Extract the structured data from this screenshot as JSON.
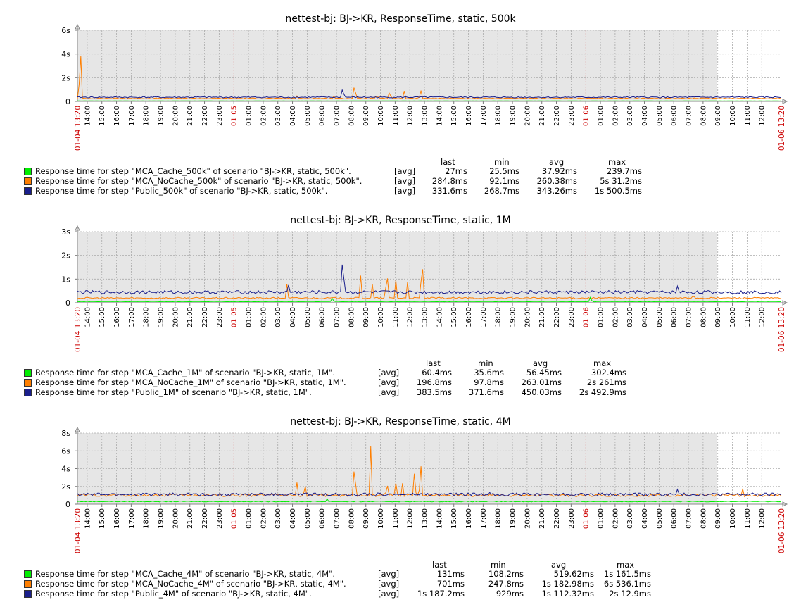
{
  "tick_labels": [
    "14:00",
    "15:00",
    "16:00",
    "17:00",
    "18:00",
    "19:00",
    "20:00",
    "21:00",
    "22:00",
    "23:00",
    "01-05",
    "01:00",
    "02:00",
    "03:00",
    "04:00",
    "05:00",
    "06:00",
    "07:00",
    "08:00",
    "09:00",
    "10:00",
    "11:00",
    "12:00",
    "13:00",
    "14:00",
    "15:00",
    "16:00",
    "17:00",
    "18:00",
    "19:00",
    "20:00",
    "21:00",
    "22:00",
    "23:00",
    "01-06",
    "01:00",
    "02:00",
    "03:00",
    "04:00",
    "05:00",
    "06:00",
    "07:00",
    "08:00",
    "09:00",
    "10:00",
    "11:00",
    "12:00"
  ],
  "x_start_label": "01-04 13:20",
  "x_end_label": "01-06 13:20",
  "stat_headers": {
    "last": "last",
    "min": "min",
    "avg": "avg",
    "max": "max"
  },
  "colors": {
    "MCA_Cache": "#00ee00",
    "MCA_NoCache": "#ff7f00",
    "Public": "#1a1f8c",
    "grid_bg": "#e6e6e6",
    "date_label": "#cc0000"
  },
  "chart_data": [
    {
      "type": "line",
      "title": "nettest-bj: BJ->KR, ResponseTime, static, 500k",
      "yticks": [
        "0",
        "2s",
        "4s",
        "6s"
      ],
      "ylim": [
        0,
        6
      ],
      "x_range": [
        "01-04 13:20",
        "01-06 13:20"
      ],
      "series": [
        {
          "name": "Response time for step \"MCA_Cache_500k\" of scenario \"BJ->KR, static, 500k\".",
          "agg": "[avg]",
          "last": "27ms",
          "min": "25.5ms",
          "avg": "37.92ms",
          "max": "239.7ms",
          "level": 0.04,
          "spikes": []
        },
        {
          "name": "Response time for step \"MCA_NoCache_500k\" of scenario \"BJ->KR, static, 500k\".",
          "agg": "[avg]",
          "last": "284.8ms",
          "min": "92.1ms",
          "avg": "260.38ms",
          "max": "5s 31.2ms",
          "level": 0.25,
          "spikes": [
            [
              0.2,
              5.0
            ],
            [
              18.9,
              1.8
            ],
            [
              21.3,
              1.1
            ],
            [
              22.3,
              1.0
            ],
            [
              23.4,
              1.2
            ],
            [
              20.4,
              0.8
            ],
            [
              15.0,
              0.6
            ],
            [
              17.5,
              0.5
            ]
          ]
        },
        {
          "name": "Response time for step \"Public_500k\" of scenario \"BJ->KR, static, 500k\".",
          "agg": "[avg]",
          "last": "331.6ms",
          "min": "268.7ms",
          "avg": "343.26ms",
          "max": "1s 500.5ms",
          "level": 0.35,
          "spikes": [
            [
              18.1,
              1.5
            ]
          ]
        }
      ]
    },
    {
      "type": "line",
      "title": "nettest-bj: BJ->KR, ResponseTime, static, 1M",
      "yticks": [
        "0",
        "1s",
        "2s",
        "3s"
      ],
      "ylim": [
        0,
        3
      ],
      "x_range": [
        "01-04 13:20",
        "01-06 13:20"
      ],
      "series": [
        {
          "name": "Response time for step \"MCA_Cache_1M\" of scenario \"BJ->KR, static, 1M\".",
          "agg": "[avg]",
          "last": "60.4ms",
          "min": "35.6ms",
          "avg": "56.45ms",
          "max": "302.4ms",
          "level": 0.05,
          "spikes": [
            [
              17.4,
              0.25
            ],
            [
              35.0,
              0.3
            ],
            [
              60.0,
              0.25
            ]
          ]
        },
        {
          "name": "Response time for step \"MCA_NoCache_1M\" of scenario \"BJ->KR, static, 1M\".",
          "agg": "[avg]",
          "last": "196.8ms",
          "min": "97.8ms",
          "avg": "263.01ms",
          "max": "2s 261ms",
          "level": 0.2,
          "spikes": [
            [
              23.5,
              2.2
            ],
            [
              21.1,
              1.6
            ],
            [
              19.3,
              1.3
            ],
            [
              22.5,
              1.0
            ],
            [
              14.3,
              0.9
            ],
            [
              20.1,
              0.9
            ],
            [
              21.7,
              1.1
            ],
            [
              42.0,
              0.5
            ],
            [
              58.0,
              0.5
            ]
          ]
        },
        {
          "name": "Response time for step \"Public_1M\" of scenario \"BJ->KR, static, 1M\".",
          "agg": "[avg]",
          "last": "383.5ms",
          "min": "371.6ms",
          "avg": "450.03ms",
          "max": "2s 492.9ms",
          "level": 0.45,
          "spikes": [
            [
              18.1,
              2.5
            ],
            [
              14.4,
              0.75
            ],
            [
              40.9,
              0.8
            ]
          ]
        }
      ]
    },
    {
      "type": "line",
      "title": "nettest-bj: BJ->KR, ResponseTime, static, 4M",
      "yticks": [
        "0",
        "2s",
        "4s",
        "6s",
        "8s"
      ],
      "ylim": [
        0,
        8
      ],
      "x_range": [
        "01-04 13:20",
        "01-06 13:20"
      ],
      "series": [
        {
          "name": "Response time for step \"MCA_Cache_4M\" of scenario \"BJ->KR, static, 4M\".",
          "agg": "[avg]",
          "last": "131ms",
          "min": "108.2ms",
          "avg": "519.62ms",
          "max": "1s 161.5ms",
          "level": 0.3,
          "spikes": [
            [
              17.0,
              0.8
            ]
          ]
        },
        {
          "name": "Response time for step \"MCA_NoCache_4M\" of scenario \"BJ->KR, static, 4M\".",
          "agg": "[avg]",
          "last": "701ms",
          "min": "247.8ms",
          "avg": "1s 182.98ms",
          "max": "6s 536.1ms",
          "level": 1.0,
          "spikes": [
            [
              20.0,
              6.5
            ],
            [
              18.9,
              5.7
            ],
            [
              23.4,
              5.6
            ],
            [
              23.0,
              4.5
            ],
            [
              22.2,
              3.1
            ],
            [
              21.1,
              3.2
            ],
            [
              21.7,
              2.7
            ],
            [
              15.0,
              3.2
            ],
            [
              15.5,
              3.1
            ],
            [
              42.0,
              2.2
            ],
            [
              45.4,
              2.3
            ],
            [
              51.9,
              2.1
            ],
            [
              12.4,
              2.0
            ]
          ]
        },
        {
          "name": "Response time for step \"Public_4M\" of scenario \"BJ->KR, static, 4M\".",
          "agg": "[avg]",
          "last": "1s 187.2ms",
          "min": "929ms",
          "avg": "1s 112.32ms",
          "max": "2s 12.9ms",
          "level": 1.1,
          "spikes": [
            [
              40.9,
              1.9
            ],
            [
              28.1,
              1.5
            ],
            [
              30.5,
              1.4
            ]
          ]
        }
      ]
    }
  ]
}
